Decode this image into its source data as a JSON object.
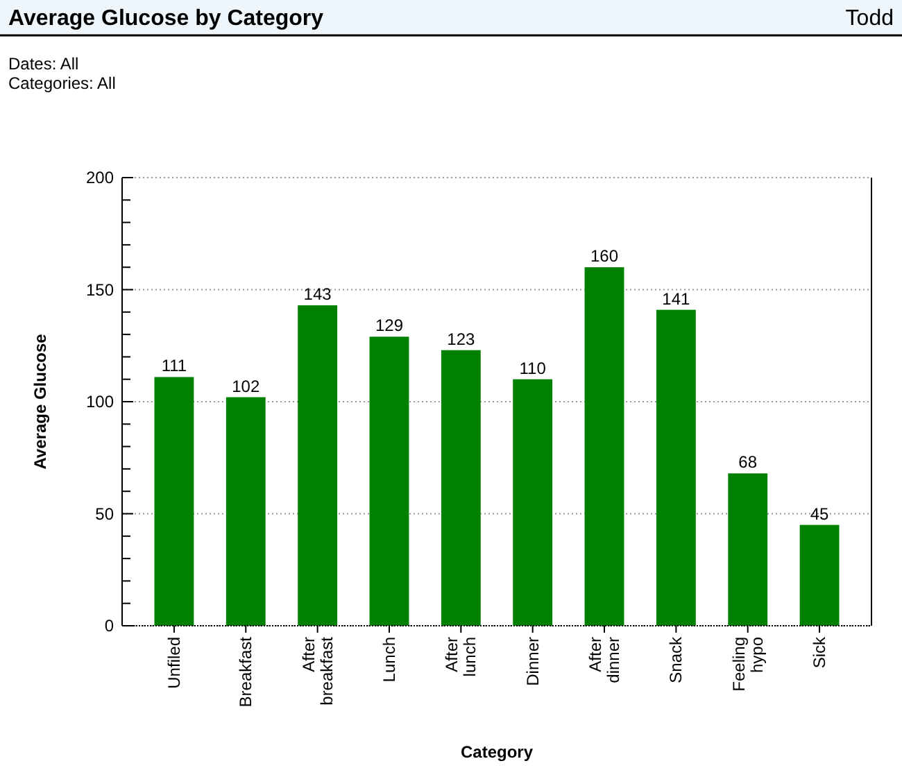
{
  "chart_data": {
    "type": "bar",
    "title": "Average Glucose by Category",
    "xlabel": "Category",
    "ylabel": "Average Glucose",
    "annotations": [
      "Todd",
      "Dates: All",
      "Categories: All"
    ],
    "categories": [
      "Unfiled",
      "Breakfast",
      "After breakfast",
      "Lunch",
      "After lunch",
      "Dinner",
      "After dinner",
      "Snack",
      "Feeling hypo",
      "Sick"
    ],
    "values": [
      111,
      102,
      143,
      129,
      123,
      110,
      160,
      141,
      68,
      45
    ],
    "color": "#008000",
    "data_labels": true,
    "ylim": [
      0,
      200
    ],
    "yticks": [
      0,
      {
        "value": 10,
        "label": null
      },
      {
        "value": 20,
        "label": null
      },
      {
        "value": 30,
        "label": null
      },
      {
        "value": 40,
        "label": null
      },
      50,
      {
        "value": 60,
        "label": null
      },
      {
        "value": 70,
        "label": null
      },
      {
        "value": 80,
        "label": null
      },
      {
        "value": 90,
        "label": null
      },
      100,
      {
        "value": 110,
        "label": null
      },
      {
        "value": 120,
        "label": null
      },
      {
        "value": 130,
        "label": null
      },
      {
        "value": 140,
        "label": null
      },
      150,
      {
        "value": 160,
        "label": null
      },
      {
        "value": 170,
        "label": null
      },
      {
        "value": 180,
        "label": null
      },
      {
        "value": 190,
        "label": null
      },
      200
    ],
    "grid": "y"
  }
}
